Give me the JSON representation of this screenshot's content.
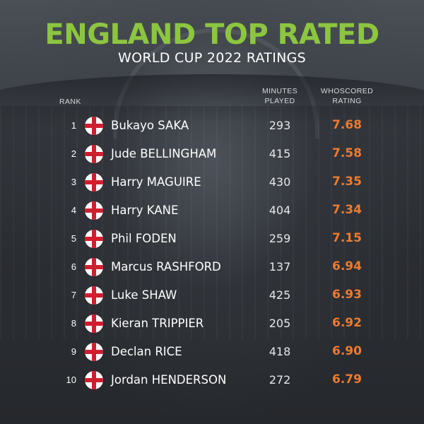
{
  "title": "ENGLAND TOP RATED",
  "subtitle": "WORLD CUP 2022 RATINGS",
  "headers": {
    "rank": "RANK",
    "minutes_line1": "MINUTES",
    "minutes_line2": "PLAYED",
    "rating_line1": "WHOSCORED",
    "rating_line2": "RATING"
  },
  "colors": {
    "title": "#8cc63f",
    "rating": "#ef7a2e",
    "flag_cross": "#cf1f2e"
  },
  "players": [
    {
      "rank": "1",
      "name": "Bukayo SAKA",
      "minutes": "293",
      "rating": "7.68"
    },
    {
      "rank": "2",
      "name": "Jude BELLINGHAM",
      "minutes": "415",
      "rating": "7.58"
    },
    {
      "rank": "3",
      "name": "Harry MAGUIRE",
      "minutes": "430",
      "rating": "7.35"
    },
    {
      "rank": "4",
      "name": "Harry KANE",
      "minutes": "404",
      "rating": "7.34"
    },
    {
      "rank": "5",
      "name": "Phil FODEN",
      "minutes": "259",
      "rating": "7.15"
    },
    {
      "rank": "6",
      "name": "Marcus RASHFORD",
      "minutes": "137",
      "rating": "6.94"
    },
    {
      "rank": "7",
      "name": "Luke SHAW",
      "minutes": "425",
      "rating": "6.93"
    },
    {
      "rank": "8",
      "name": "Kieran TRIPPIER",
      "minutes": "205",
      "rating": "6.92"
    },
    {
      "rank": "9",
      "name": "Declan RICE",
      "minutes": "418",
      "rating": "6.90"
    },
    {
      "rank": "10",
      "name": "Jordan HENDERSON",
      "minutes": "272",
      "rating": "6.79"
    }
  ]
}
